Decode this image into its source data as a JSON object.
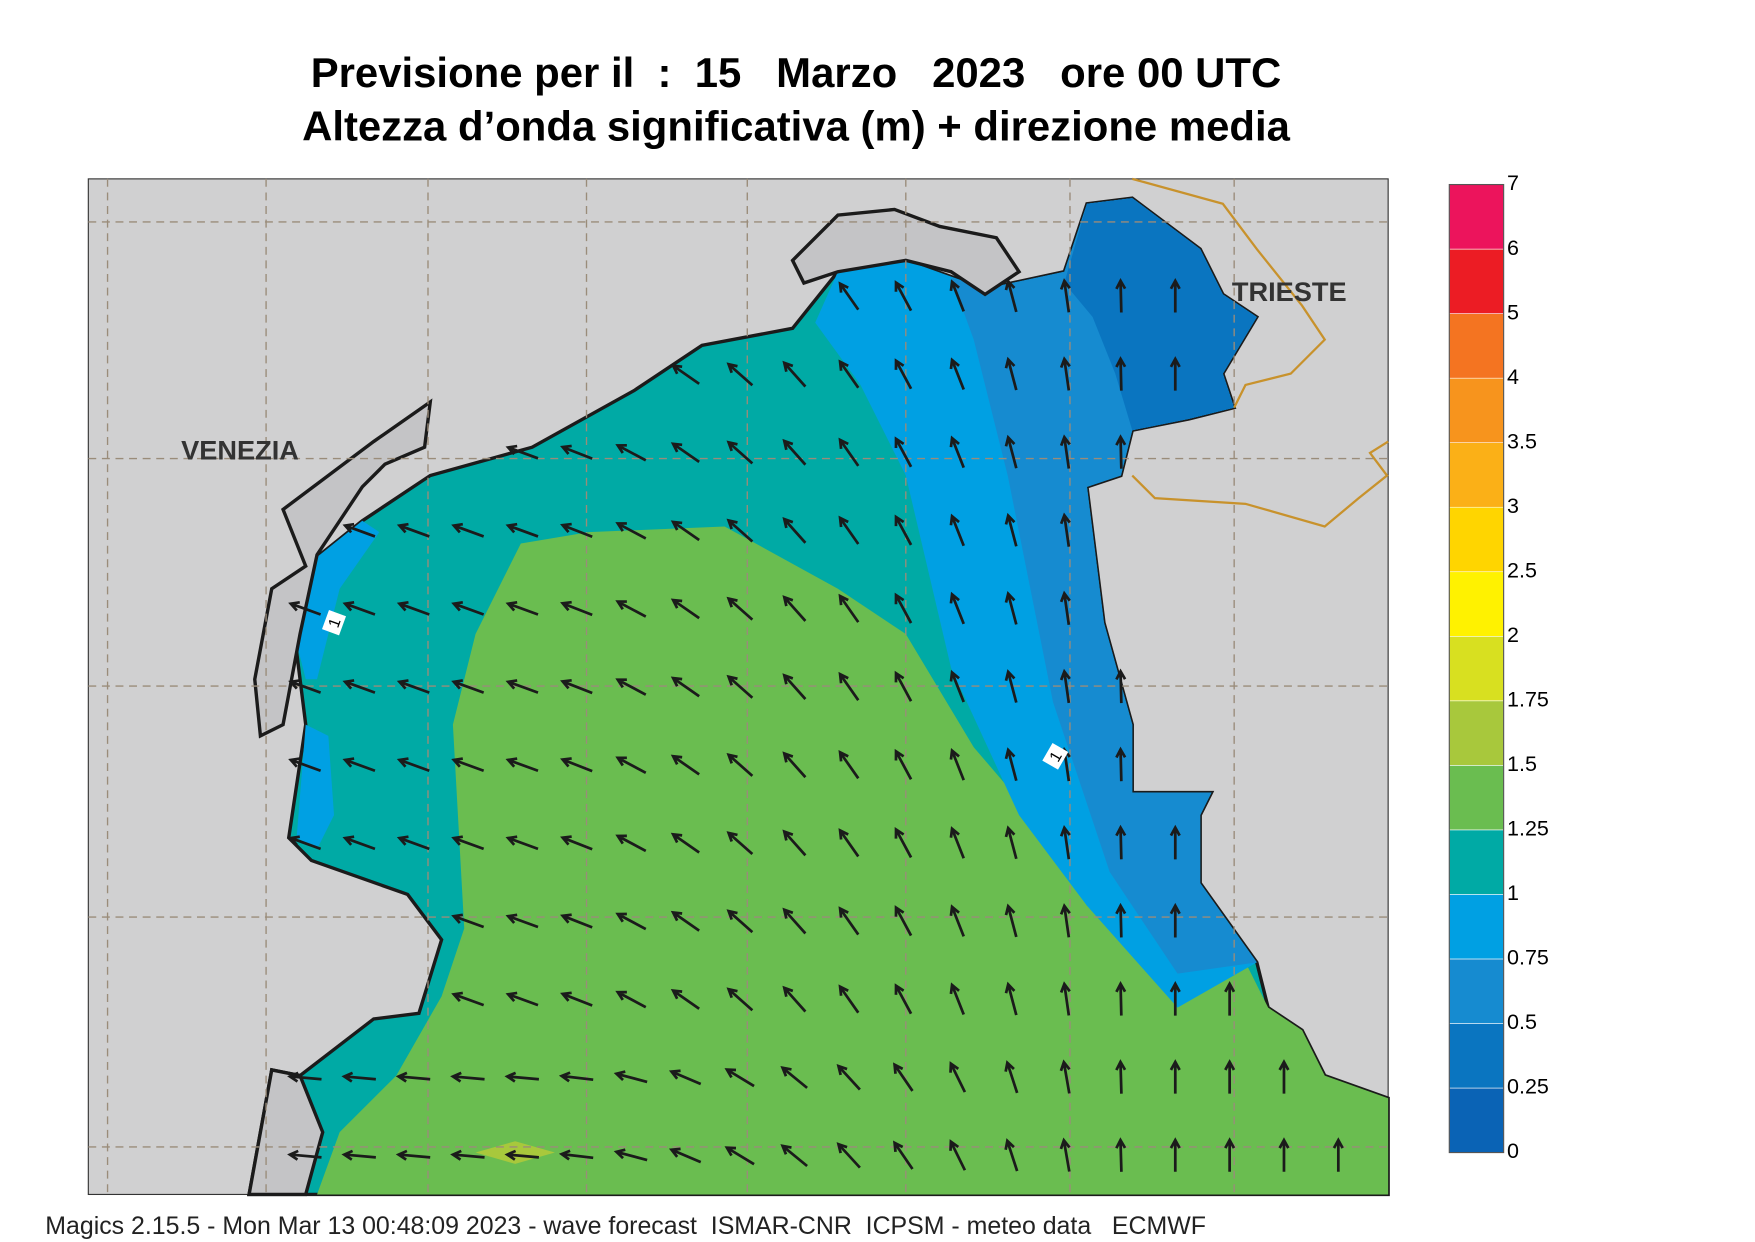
{
  "header": {
    "title": "Previsione per il  :  15   Marzo   2023   ore 00 UTC",
    "subtitle": "Altezza d’onda significativa (m) + direzione media"
  },
  "map": {
    "places": [
      "VENEZIA",
      "TRIESTE"
    ],
    "contour_labels": [
      "1",
      "1"
    ]
  },
  "colorbar": {
    "ticks": [
      0,
      0.25,
      0.5,
      0.75,
      1,
      1.25,
      1.5,
      1.75,
      2,
      2.5,
      3,
      3.5,
      4,
      5,
      6,
      7
    ],
    "colors": [
      "#0a63b5",
      "#0a75c0",
      "#168bd0",
      "#00a0e3",
      "#00aaa5",
      "#6abd50",
      "#a8c83c",
      "#d8e020",
      "#fff200",
      "#ffd500",
      "#fbb017",
      "#f7941d",
      "#f47421",
      "#ec1c24",
      "#ec145c"
    ]
  },
  "footer": "Magics 2.15.5 - Mon Mar 13 00:48:09 2023 - wave forecast  ISMAR-CNR  ICPSM - meteo data   ECMWF"
}
